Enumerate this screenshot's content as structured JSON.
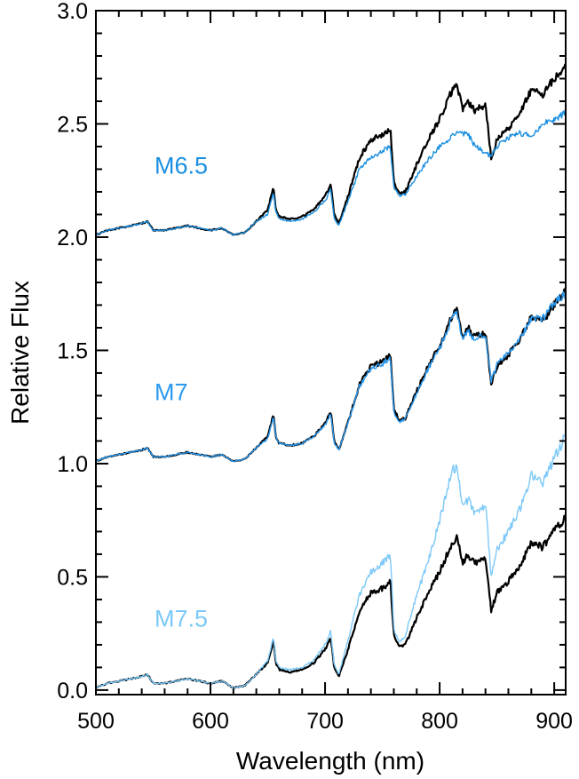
{
  "chart_data": {
    "type": "line",
    "xlabel": "Wavelength (nm)",
    "ylabel": "Relative Flux",
    "xlim": [
      500,
      910
    ],
    "ylim": [
      -0.02,
      3.0
    ],
    "xticks": [
      500,
      600,
      700,
      800,
      900
    ],
    "xtick_labels": [
      "500",
      "600",
      "700",
      "800",
      "900"
    ],
    "yticks": [
      0.0,
      0.5,
      1.0,
      1.5,
      2.0,
      2.5,
      3.0
    ],
    "ytick_labels": [
      "0.0",
      "0.5",
      "1.0",
      "1.5",
      "2.0",
      "2.5",
      "3.0"
    ],
    "grid": false,
    "wavelengths": [
      500,
      510,
      520,
      530,
      540,
      545,
      550,
      560,
      570,
      580,
      590,
      600,
      610,
      620,
      630,
      640,
      650,
      655,
      657,
      660,
      670,
      680,
      690,
      700,
      705,
      708,
      712,
      720,
      730,
      740,
      750,
      757,
      760,
      765,
      770,
      780,
      790,
      800,
      810,
      815,
      820,
      825,
      830,
      840,
      845,
      850,
      860,
      870,
      880,
      890,
      900,
      910
    ],
    "panels": [
      {
        "label": "M6.5",
        "label_color": "#1a8fe0",
        "offset": 2.0,
        "comparison_color": "#1a8fe0",
        "reference_color": "#000000",
        "reference_values": [
          0.01,
          0.03,
          0.04,
          0.05,
          0.06,
          0.07,
          0.03,
          0.03,
          0.04,
          0.05,
          0.04,
          0.03,
          0.04,
          0.01,
          0.02,
          0.07,
          0.12,
          0.22,
          0.12,
          0.09,
          0.08,
          0.09,
          0.12,
          0.18,
          0.23,
          0.1,
          0.06,
          0.18,
          0.35,
          0.43,
          0.45,
          0.48,
          0.24,
          0.19,
          0.2,
          0.32,
          0.43,
          0.52,
          0.64,
          0.68,
          0.56,
          0.6,
          0.56,
          0.58,
          0.35,
          0.43,
          0.48,
          0.55,
          0.65,
          0.63,
          0.7,
          0.76
        ],
        "comparison_values": [
          0.01,
          0.03,
          0.04,
          0.05,
          0.06,
          0.07,
          0.03,
          0.03,
          0.04,
          0.05,
          0.04,
          0.03,
          0.04,
          0.01,
          0.02,
          0.07,
          0.1,
          0.2,
          0.11,
          0.08,
          0.07,
          0.08,
          0.11,
          0.16,
          0.21,
          0.08,
          0.05,
          0.16,
          0.3,
          0.35,
          0.38,
          0.4,
          0.22,
          0.18,
          0.19,
          0.27,
          0.34,
          0.4,
          0.44,
          0.47,
          0.46,
          0.45,
          0.41,
          0.37,
          0.36,
          0.4,
          0.44,
          0.46,
          0.45,
          0.5,
          0.52,
          0.55
        ]
      },
      {
        "label": "M7",
        "label_color": "#2b9af0",
        "offset": 1.0,
        "comparison_color": "#2b9af0",
        "reference_color": "#000000",
        "reference_values": [
          0.01,
          0.03,
          0.04,
          0.05,
          0.06,
          0.07,
          0.03,
          0.03,
          0.04,
          0.05,
          0.04,
          0.03,
          0.04,
          0.01,
          0.02,
          0.07,
          0.12,
          0.22,
          0.12,
          0.09,
          0.08,
          0.09,
          0.12,
          0.18,
          0.23,
          0.1,
          0.06,
          0.18,
          0.35,
          0.43,
          0.45,
          0.48,
          0.24,
          0.19,
          0.2,
          0.32,
          0.43,
          0.52,
          0.64,
          0.68,
          0.56,
          0.6,
          0.56,
          0.58,
          0.35,
          0.43,
          0.48,
          0.55,
          0.65,
          0.63,
          0.7,
          0.76
        ],
        "comparison_values": [
          0.01,
          0.03,
          0.04,
          0.05,
          0.06,
          0.07,
          0.03,
          0.03,
          0.04,
          0.05,
          0.04,
          0.03,
          0.04,
          0.01,
          0.02,
          0.07,
          0.11,
          0.21,
          0.12,
          0.09,
          0.08,
          0.09,
          0.12,
          0.17,
          0.22,
          0.09,
          0.06,
          0.18,
          0.34,
          0.42,
          0.44,
          0.47,
          0.23,
          0.18,
          0.2,
          0.31,
          0.42,
          0.51,
          0.63,
          0.67,
          0.55,
          0.59,
          0.55,
          0.57,
          0.36,
          0.44,
          0.49,
          0.55,
          0.64,
          0.64,
          0.71,
          0.75
        ]
      },
      {
        "label": "M7.5",
        "label_color": "#7cc8f8",
        "offset": 0.0,
        "comparison_color": "#7cc8f8",
        "reference_color": "#000000",
        "reference_values": [
          0.01,
          0.03,
          0.04,
          0.05,
          0.06,
          0.07,
          0.03,
          0.03,
          0.04,
          0.05,
          0.04,
          0.03,
          0.04,
          0.01,
          0.02,
          0.07,
          0.12,
          0.22,
          0.12,
          0.09,
          0.08,
          0.09,
          0.12,
          0.18,
          0.23,
          0.1,
          0.06,
          0.18,
          0.35,
          0.43,
          0.45,
          0.48,
          0.24,
          0.19,
          0.2,
          0.32,
          0.43,
          0.52,
          0.64,
          0.68,
          0.56,
          0.6,
          0.56,
          0.58,
          0.35,
          0.43,
          0.48,
          0.55,
          0.65,
          0.63,
          0.7,
          0.76
        ],
        "comparison_values": [
          0.01,
          0.03,
          0.04,
          0.05,
          0.06,
          0.07,
          0.03,
          0.03,
          0.04,
          0.05,
          0.04,
          0.03,
          0.04,
          0.01,
          0.02,
          0.07,
          0.13,
          0.23,
          0.13,
          0.1,
          0.09,
          0.1,
          0.13,
          0.2,
          0.26,
          0.11,
          0.07,
          0.22,
          0.42,
          0.52,
          0.56,
          0.6,
          0.27,
          0.21,
          0.24,
          0.42,
          0.57,
          0.75,
          0.95,
          1.0,
          0.8,
          0.84,
          0.78,
          0.82,
          0.5,
          0.62,
          0.7,
          0.8,
          0.95,
          0.92,
          1.02,
          1.12
        ]
      }
    ]
  }
}
